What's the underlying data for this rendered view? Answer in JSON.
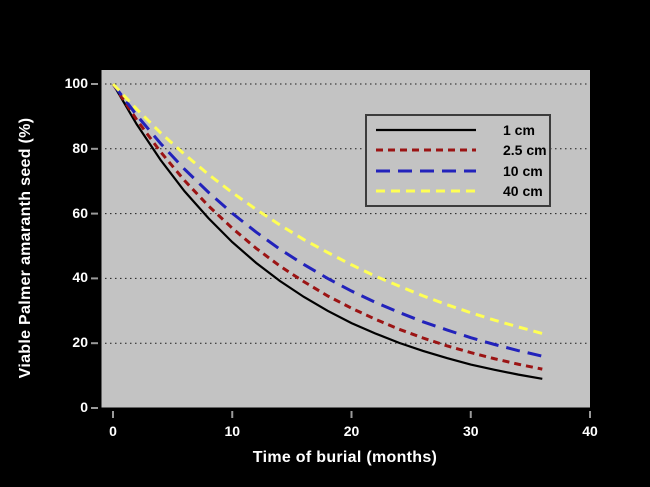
{
  "figure": {
    "background_color": "#000000",
    "plot_background_color": "#c3c3c3",
    "text_color": "#ffffff",
    "legend_border_color": "#3c3c3c",
    "gridline_color": "#1c1c1c",
    "tick_color": "#9a9a9a"
  },
  "chart_data": {
    "type": "line",
    "title": "",
    "xlabel": "Time of burial (months)",
    "ylabel": "Viable Palmer amaranth seed (%)",
    "xlim": [
      0,
      40
    ],
    "ylim": [
      0,
      100
    ],
    "x_ticks": [
      0,
      10,
      20,
      30,
      40
    ],
    "y_ticks": [
      0,
      20,
      40,
      60,
      80,
      100
    ],
    "grid": "horizontal dotted black lines at y ticks 20-100",
    "legend_position": "upper right",
    "x": [
      0,
      2,
      4,
      6,
      8,
      10,
      12,
      14,
      16,
      18,
      20,
      22,
      24,
      26,
      28,
      30,
      32,
      34,
      36
    ],
    "series": [
      {
        "name": "1 cm",
        "color": "#000000",
        "line_style": "solid",
        "dasharray": "",
        "stroke_width": 2.2,
        "values": [
          100,
          87.5,
          76.5,
          66.9,
          58.6,
          51.2,
          44.8,
          39.2,
          34.3,
          30.0,
          26.2,
          23.0,
          20.1,
          17.6,
          15.4,
          13.4,
          11.8,
          10.3,
          9.0
        ]
      },
      {
        "name": "2.5 cm",
        "color": "#9b1414",
        "line_style": "short-dash",
        "dasharray": "7,5",
        "stroke_width": 3,
        "values": [
          100,
          88.9,
          79.0,
          70.2,
          62.4,
          55.5,
          49.3,
          43.8,
          39.0,
          34.6,
          30.8,
          27.4,
          24.3,
          21.6,
          19.2,
          17.1,
          15.2,
          13.5,
          12.0
        ]
      },
      {
        "name": "10 cm",
        "color": "#2222bb",
        "line_style": "long-dash",
        "dasharray": "14,8",
        "stroke_width": 3,
        "values": [
          100,
          90.3,
          81.6,
          73.7,
          66.6,
          60.1,
          54.3,
          49.0,
          44.3,
          40.0,
          36.1,
          32.6,
          29.5,
          26.6,
          24.1,
          21.7,
          19.6,
          17.7,
          16.0
        ]
      },
      {
        "name": "40 cm",
        "color": "#ffff55",
        "line_style": "medium-dash",
        "dasharray": "9,6",
        "stroke_width": 3,
        "values": [
          100,
          92.2,
          84.9,
          78.3,
          72.1,
          66.5,
          61.3,
          56.5,
          52.0,
          48.0,
          44.2,
          40.7,
          37.6,
          34.6,
          31.9,
          29.4,
          27.1,
          25.0,
          23.0
        ]
      }
    ]
  }
}
